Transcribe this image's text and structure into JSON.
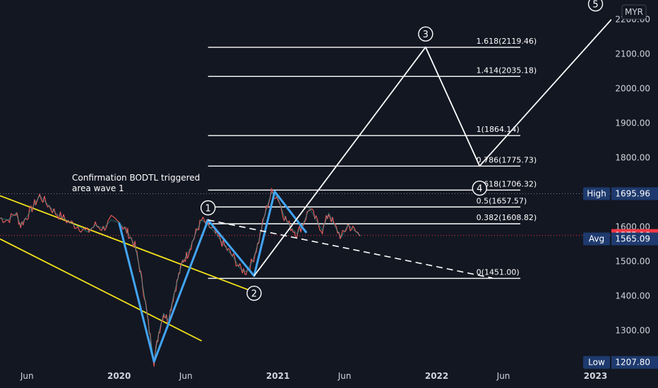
{
  "chart_data": {
    "type": "line",
    "currency": "MYR",
    "y_ticks": [
      1300,
      1400,
      1500,
      1600,
      1700,
      1800,
      1900,
      2000,
      2100,
      2200
    ],
    "ylim": [
      1195,
      2240
    ],
    "x_ticks": [
      {
        "label": "Jun",
        "t": 2019.42
      },
      {
        "label": "2020",
        "t": 2020.0
      },
      {
        "label": "Jun",
        "t": 2020.42
      },
      {
        "label": "2021",
        "t": 2021.0
      },
      {
        "label": "Jun",
        "t": 2021.42
      },
      {
        "label": "2022",
        "t": 2022.0
      },
      {
        "label": "Jun",
        "t": 2022.42
      },
      {
        "label": "2023",
        "t": 2023.0
      }
    ],
    "xlim": [
      2019.25,
      2023.1
    ],
    "price_path": [
      [
        2019.25,
        1625
      ],
      [
        2019.3,
        1620
      ],
      [
        2019.35,
        1640
      ],
      [
        2019.38,
        1605
      ],
      [
        2019.42,
        1630
      ],
      [
        2019.46,
        1660
      ],
      [
        2019.5,
        1690
      ],
      [
        2019.55,
        1665
      ],
      [
        2019.6,
        1640
      ],
      [
        2019.65,
        1625
      ],
      [
        2019.7,
        1610
      ],
      [
        2019.75,
        1600
      ],
      [
        2019.8,
        1585
      ],
      [
        2019.85,
        1605
      ],
      [
        2019.9,
        1595
      ],
      [
        2019.95,
        1620
      ],
      [
        2020.0,
        1612
      ],
      [
        2020.03,
        1598
      ],
      [
        2020.06,
        1580
      ],
      [
        2020.1,
        1545
      ],
      [
        2020.13,
        1480
      ],
      [
        2020.16,
        1400
      ],
      [
        2020.19,
        1300
      ],
      [
        2020.22,
        1210
      ],
      [
        2020.25,
        1295
      ],
      [
        2020.28,
        1350
      ],
      [
        2020.31,
        1330
      ],
      [
        2020.34,
        1395
      ],
      [
        2020.37,
        1450
      ],
      [
        2020.4,
        1500
      ],
      [
        2020.43,
        1520
      ],
      [
        2020.46,
        1555
      ],
      [
        2020.49,
        1590
      ],
      [
        2020.52,
        1620
      ],
      [
        2020.56,
        1605
      ],
      [
        2020.6,
        1585
      ],
      [
        2020.64,
        1560
      ],
      [
        2020.68,
        1535
      ],
      [
        2020.72,
        1512
      ],
      [
        2020.76,
        1480
      ],
      [
        2020.8,
        1470
      ],
      [
        2020.84,
        1500
      ],
      [
        2020.88,
        1560
      ],
      [
        2020.92,
        1640
      ],
      [
        2020.96,
        1700
      ],
      [
        2021.0,
        1685
      ],
      [
        2021.04,
        1630
      ],
      [
        2021.08,
        1600
      ],
      [
        2021.12,
        1580
      ],
      [
        2021.16,
        1610
      ],
      [
        2021.2,
        1655
      ],
      [
        2021.24,
        1620
      ],
      [
        2021.28,
        1590
      ],
      [
        2021.32,
        1640
      ],
      [
        2021.36,
        1600
      ],
      [
        2021.4,
        1570
      ],
      [
        2021.44,
        1605
      ],
      [
        2021.48,
        1590
      ],
      [
        2021.52,
        1575
      ]
    ],
    "wave_path": [
      [
        2020.0,
        1612
      ],
      [
        2020.22,
        1210
      ],
      [
        2020.56,
        1620
      ],
      [
        2020.85,
        1458
      ],
      [
        2020.98,
        1702
      ],
      [
        2021.18,
        1583
      ]
    ],
    "channel_lines": [
      {
        "from": [
          2019.25,
          1690
        ],
        "to": [
          2020.83,
          1415
        ]
      },
      {
        "from": [
          2019.25,
          1565
        ],
        "to": [
          2020.52,
          1270
        ]
      }
    ],
    "trendline": {
      "from": [
        2020.56,
        1620
      ],
      "to": [
        2022.35,
        1452
      ]
    },
    "projection_path": [
      [
        2020.85,
        1458
      ],
      [
        2021.93,
        2120
      ],
      [
        2022.27,
        1776
      ],
      [
        2023.1,
        2200
      ]
    ],
    "fib_x_range": [
      2020.56,
      2022.5
    ],
    "fib_levels": [
      {
        "label": "0(1451.00)",
        "value": 1451.0
      },
      {
        "label": "0.382(1608.82)",
        "value": 1608.82
      },
      {
        "label": "0.5(1657.57)",
        "value": 1657.57
      },
      {
        "label": "0.618(1706.32)",
        "value": 1706.32
      },
      {
        "label": "0.786(1775.73)",
        "value": 1775.73
      },
      {
        "label": "1(1864.14)",
        "value": 1864.14
      },
      {
        "label": "1.414(2035.18)",
        "value": 2035.18
      },
      {
        "label": "1.618(2119.46)",
        "value": 2119.46
      }
    ],
    "wave_labels": [
      {
        "label": "1",
        "t": 2020.56,
        "v": 1655
      },
      {
        "label": "2",
        "t": 2020.85,
        "v": 1408
      },
      {
        "label": "3",
        "t": 2021.93,
        "v": 2158
      },
      {
        "label": "4",
        "t": 2022.27,
        "v": 1712
      },
      {
        "label": "5",
        "t": 2023.0,
        "v": 2245
      }
    ],
    "annotation": [
      "Confirmation BODTL triggered",
      "area wave 1"
    ],
    "markers": [
      {
        "label": "High",
        "value": "1695.96",
        "v": 1695.96,
        "color": "#ffffff"
      },
      {
        "label": "",
        "value": "1575.16",
        "v": 1575.16,
        "color": "#f23645"
      },
      {
        "label": "Avg",
        "value": "1565.09",
        "v": 1565.09,
        "color": "#ffffff"
      },
      {
        "label": "Low",
        "value": "1207.80",
        "v": 1207.8,
        "color": "#ffffff"
      }
    ],
    "colors": {
      "background": "#131722",
      "wave": "#42a5f5",
      "channel": "#f2e11b",
      "drawing": "#ffffff",
      "price": "#f23645",
      "tag": "#1e3a6e"
    }
  }
}
